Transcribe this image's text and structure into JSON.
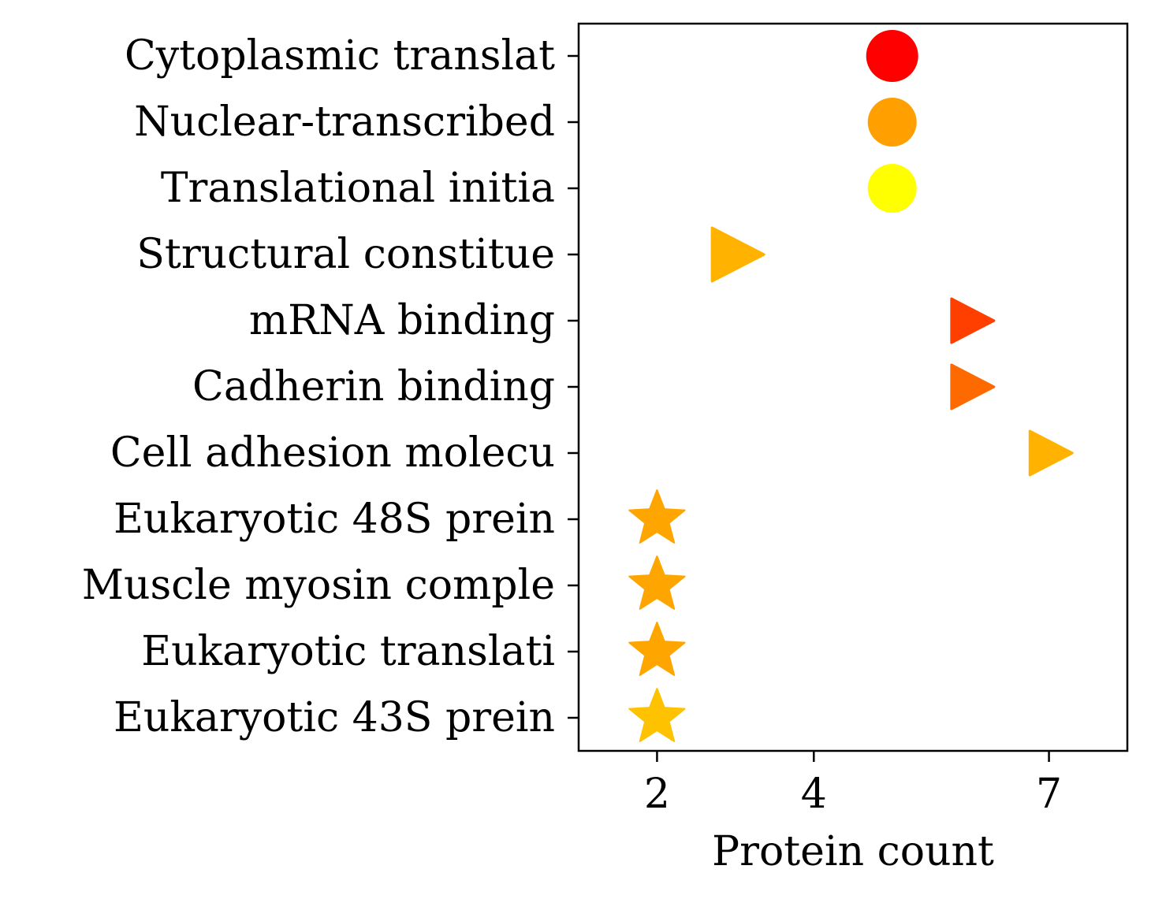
{
  "chart_data": {
    "type": "scatter",
    "title": "",
    "xlabel": "Protein count",
    "ylabel": "",
    "xlim": [
      1,
      8
    ],
    "xticks": [
      2,
      4,
      7
    ],
    "grid": false,
    "legend": "none",
    "categories": [
      "Cytoplasmic translat",
      "Nuclear-transcribed ",
      "Translational initia",
      "Structural constitue",
      "mRNA binding",
      "Cadherin binding",
      "Cell adhesion molecu",
      "Eukaryotic 48S prein",
      "Muscle myosin comple",
      "Eukaryotic translati",
      "Eukaryotic 43S prein"
    ],
    "points": [
      {
        "category": "Cytoplasmic translat",
        "x": 5,
        "marker": "circle",
        "color": "#ff0000"
      },
      {
        "category": "Nuclear-transcribed ",
        "x": 5,
        "marker": "circle",
        "color": "#ff9f00"
      },
      {
        "category": "Translational initia",
        "x": 5,
        "marker": "circle",
        "color": "#ffff00"
      },
      {
        "category": "Structural constitue",
        "x": 3,
        "marker": "triangle-right",
        "color": "#ffb300"
      },
      {
        "category": "mRNA binding",
        "x": 6,
        "marker": "triangle-right",
        "color": "#ff3f00"
      },
      {
        "category": "Cadherin binding",
        "x": 6,
        "marker": "triangle-right",
        "color": "#ff6a00"
      },
      {
        "category": "Cell adhesion molecu",
        "x": 7,
        "marker": "triangle-right",
        "color": "#ffb300"
      },
      {
        "category": "Eukaryotic 48S prein",
        "x": 2,
        "marker": "star",
        "color": "#ffa500"
      },
      {
        "category": "Muscle myosin comple",
        "x": 2,
        "marker": "star",
        "color": "#ffa500"
      },
      {
        "category": "Eukaryotic translati",
        "x": 2,
        "marker": "star",
        "color": "#ffa500"
      },
      {
        "category": "Eukaryotic 43S prein",
        "x": 2,
        "marker": "star",
        "color": "#ffc200"
      }
    ]
  }
}
